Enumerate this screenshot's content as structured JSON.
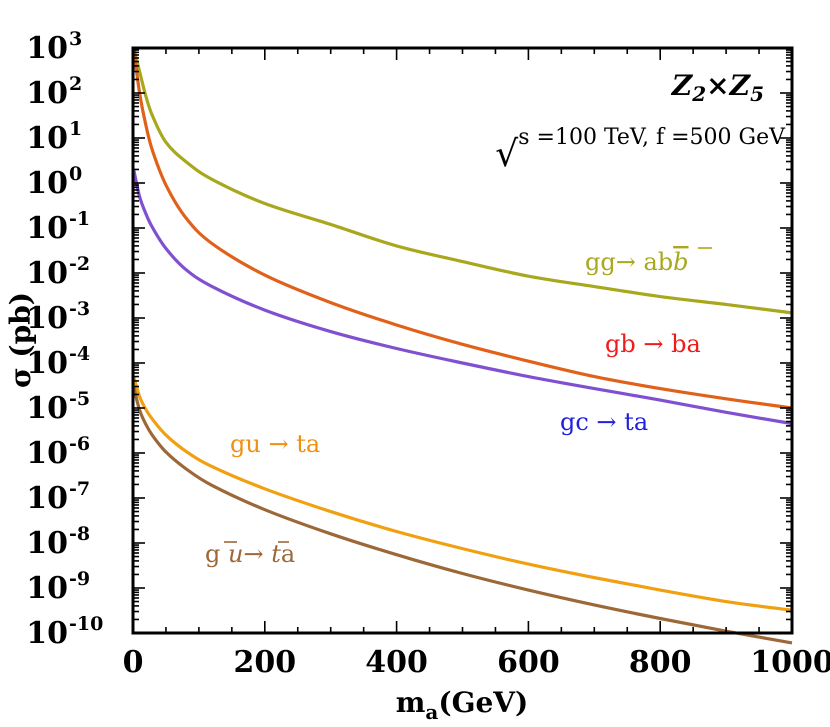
{
  "chart_data": {
    "type": "line",
    "x_scale": "linear",
    "y_scale": "log",
    "xlim": [
      0,
      1000
    ],
    "ylim_exp": [
      -10,
      3
    ],
    "xlabel_main": "m",
    "xlabel_sub": "a",
    "xlabel_unit": "(GeV)",
    "ylabel": "σ (pb)",
    "x_ticks": [
      0,
      200,
      400,
      600,
      800,
      1000
    ],
    "x_tick_labels": [
      "0",
      "200",
      "400",
      "600",
      "800",
      "1000"
    ],
    "y_ticks_exp": [
      3,
      2,
      1,
      0,
      -1,
      -2,
      -3,
      -4,
      -5,
      -6,
      -7,
      -8,
      -9,
      -10
    ],
    "y_tick_labels": [
      "3",
      "2",
      "1",
      "0",
      "-1",
      "-2",
      "-3",
      "-4",
      "-5",
      "-6",
      "-7",
      "-8",
      "-9",
      "-10"
    ],
    "y_tick_base": "10",
    "model_label": "Z2×Z5",
    "model_label_parts": {
      "z1": "Z",
      "s1": "2",
      "times": "×",
      "z2": "Z",
      "s2": "5"
    },
    "energy_label": {
      "sqrt": "√",
      "s": "s",
      "rest": " =100 TeV, f =500 GeV"
    },
    "series": [
      {
        "name": "gg→ ab b̄",
        "color": "#a8a81e",
        "x": [
          1,
          10,
          20,
          30,
          50,
          80,
          120,
          200,
          300,
          400,
          500,
          600,
          700,
          800,
          900,
          1000
        ],
        "y": [
          1000,
          300,
          80,
          30,
          8,
          3,
          1.2,
          0.35,
          0.12,
          0.04,
          0.018,
          0.0085,
          0.005,
          0.003,
          0.002,
          0.0013
        ]
      },
      {
        "name": "gb → ba",
        "color": "#e0621a",
        "x": [
          1,
          10,
          20,
          30,
          50,
          80,
          120,
          200,
          300,
          400,
          500,
          600,
          700,
          800,
          900,
          1000
        ],
        "y": [
          1000,
          100,
          18,
          5,
          0.9,
          0.17,
          0.045,
          0.009,
          0.0022,
          0.0007,
          0.00026,
          0.00011,
          5e-05,
          2.7e-05,
          1.6e-05,
          1e-05
        ]
      },
      {
        "name": "gc → ta",
        "color": "#8050d0",
        "x": [
          1,
          10,
          20,
          30,
          50,
          80,
          120,
          200,
          300,
          400,
          500,
          600,
          700,
          800,
          900,
          1000
        ],
        "y": [
          2,
          0.5,
          0.2,
          0.1,
          0.035,
          0.012,
          0.005,
          0.0015,
          0.0005,
          0.00021,
          0.0001,
          5e-05,
          2.7e-05,
          1.5e-05,
          8e-06,
          4.5e-06
        ]
      },
      {
        "name": "gu → ta",
        "color": "#f0a010",
        "x": [
          1,
          10,
          20,
          30,
          50,
          80,
          120,
          200,
          300,
          400,
          500,
          600,
          700,
          800,
          900,
          1000
        ],
        "y": [
          5e-05,
          1.8e-05,
          9e-06,
          5.5e-06,
          2.5e-06,
          1.1e-06,
          5e-07,
          1.6e-07,
          5e-08,
          1.8e-08,
          7.5e-09,
          3.4e-09,
          1.7e-09,
          9e-10,
          5e-10,
          3.2e-10
        ]
      },
      {
        "name": "g ū→ t̄a",
        "color": "#9c6838",
        "x": [
          1,
          10,
          20,
          30,
          50,
          80,
          120,
          200,
          300,
          400,
          500,
          600,
          700,
          800,
          900,
          1000
        ],
        "y": [
          3e-05,
          9e-06,
          4.2e-06,
          2.4e-06,
          1.05e-06,
          4.5e-07,
          1.9e-07,
          5.5e-08,
          1.6e-08,
          5.5e-09,
          2.1e-09,
          9e-10,
          4.2e-10,
          2.1e-10,
          1.1e-10,
          6e-11
        ]
      }
    ],
    "annotations": [
      {
        "id": "gg",
        "parts": [
          "gg→ ab",
          "b"
        ],
        "color": "#a8a81e"
      },
      {
        "id": "gb",
        "text": "gb → ba",
        "color": "#ee1c1c"
      },
      {
        "id": "gc",
        "text": "gc → ta",
        "color": "#2020e0"
      },
      {
        "id": "gu",
        "text": "gu → ta",
        "color": "#f09010"
      },
      {
        "id": "gubar",
        "parts": [
          "g ",
          "u",
          "→ ",
          "t",
          "a"
        ],
        "color": "#9c6838"
      }
    ]
  }
}
